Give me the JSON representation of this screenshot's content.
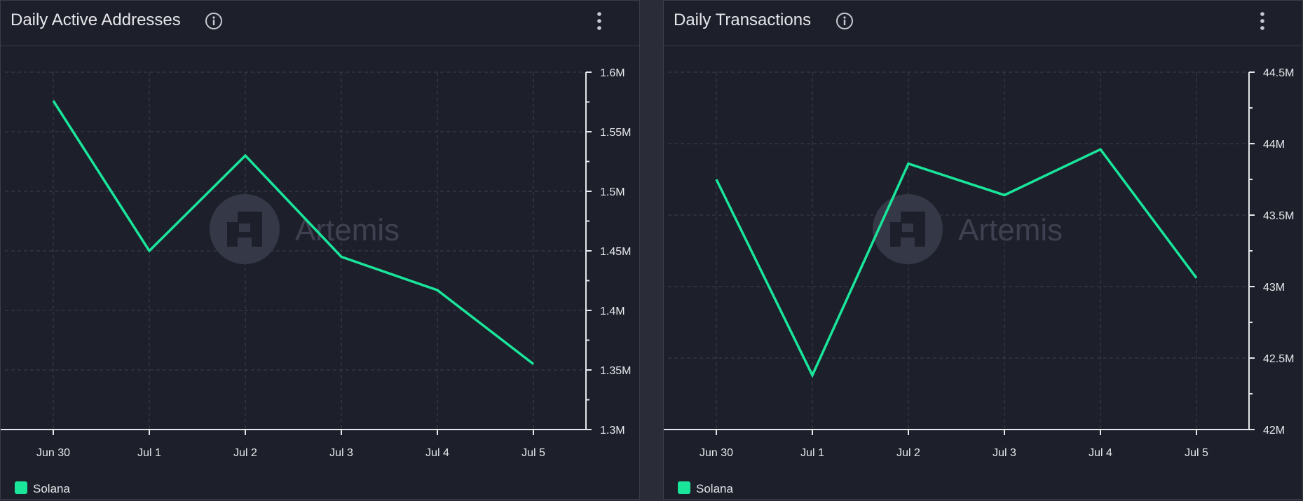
{
  "colors": {
    "series": "#19e69a",
    "grid": "#3d404c",
    "axis": "#e6e7ea",
    "watermark": "#353846"
  },
  "watermark": {
    "text": "Artemis"
  },
  "panels": [
    {
      "title": "Daily Active Addresses",
      "info_icon": "info-icon",
      "menu_icon": "kebab-icon",
      "legend": [
        {
          "label": "Solana",
          "color": "#19e69a"
        }
      ]
    },
    {
      "title": "Daily Transactions",
      "info_icon": "info-icon",
      "menu_icon": "kebab-icon",
      "legend": [
        {
          "label": "Solana",
          "color": "#19e69a"
        }
      ]
    }
  ],
  "chart_data": [
    {
      "type": "line",
      "title": "Daily Active Addresses",
      "categories": [
        "Jun 30",
        "Jul 1",
        "Jul 2",
        "Jul 3",
        "Jul 4",
        "Jul 5"
      ],
      "series": [
        {
          "name": "Solana",
          "values": [
            1576000,
            1450000,
            1530000,
            1445000,
            1417000,
            1355000
          ]
        }
      ],
      "ylim": [
        1300000,
        1600000
      ],
      "yticks": [
        1300000,
        1350000,
        1400000,
        1450000,
        1500000,
        1550000,
        1600000
      ],
      "yticklabels": [
        "1.3M",
        "1.35M",
        "1.4M",
        "1.45M",
        "1.5M",
        "1.55M",
        "1.6M"
      ],
      "y_axis_side": "right",
      "grid": true,
      "legend_position": "bottom-left"
    },
    {
      "type": "line",
      "title": "Daily Transactions",
      "categories": [
        "Jun 30",
        "Jul 1",
        "Jul 2",
        "Jul 3",
        "Jul 4",
        "Jul 5"
      ],
      "series": [
        {
          "name": "Solana",
          "values": [
            43750000,
            42380000,
            43860000,
            43640000,
            43960000,
            43060000
          ]
        }
      ],
      "ylim": [
        42000000,
        44500000
      ],
      "yticks": [
        42000000,
        42500000,
        43000000,
        43500000,
        44000000,
        44500000
      ],
      "yticklabels": [
        "42M",
        "42.5M",
        "43M",
        "43.5M",
        "44M",
        "44.5M"
      ],
      "y_axis_side": "right",
      "grid": true,
      "legend_position": "bottom-left"
    }
  ]
}
